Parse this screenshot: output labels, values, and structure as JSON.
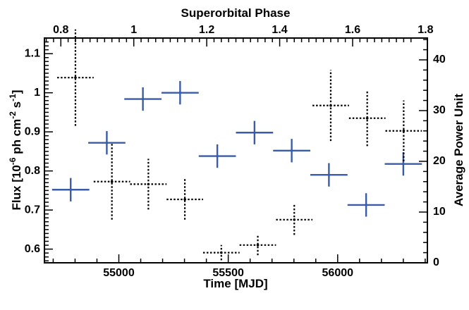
{
  "chart_data": {
    "type": "scatter",
    "title": "",
    "xlabel": "Time [MJD]",
    "ylabel": "Flux [10^-6 ph cm^-2 s^-1]",
    "ylabel_parts": [
      "Flux [10",
      "-6",
      " ph cm",
      "-2",
      " s",
      "-1",
      "]"
    ],
    "x2label": "Superorbital Phase",
    "y2label": "Average Power Unit",
    "xlim": [
      54660,
      56410
    ],
    "ylim": [
      0.565,
      1.14
    ],
    "x2lim": [
      0.755,
      1.805
    ],
    "y2lim": [
      0,
      44.3
    ],
    "xticks": [
      55000,
      55500,
      56000
    ],
    "yticks": [
      0.6,
      0.7,
      0.8,
      0.9,
      1,
      1.1
    ],
    "yticklabels": [
      "0.6",
      "0.7",
      "0.8",
      "0.9",
      "1",
      "1.1"
    ],
    "x2ticks": [
      0.8,
      1.0,
      1.2,
      1.4,
      1.6,
      1.8
    ],
    "x2ticklabels": [
      "0.8",
      "1",
      "1.2",
      "1.4",
      "1.6",
      "1.8"
    ],
    "y2ticks": [
      0,
      10,
      20,
      30,
      40
    ],
    "grid": false,
    "series": [
      {
        "color": "#3a5ca8",
        "style": "solid",
        "axis": "bottom-left",
        "points": [
          {
            "x": 54780,
            "xerr": 85,
            "y": 0.752,
            "yerr": 0.03
          },
          {
            "x": 54945,
            "xerr": 85,
            "y": 0.872,
            "yerr": 0.03
          },
          {
            "x": 55110,
            "xerr": 85,
            "y": 0.984,
            "yerr": 0.03
          },
          {
            "x": 55280,
            "xerr": 85,
            "y": 1.0,
            "yerr": 0.03
          },
          {
            "x": 55450,
            "xerr": 85,
            "y": 0.838,
            "yerr": 0.03
          },
          {
            "x": 55620,
            "xerr": 85,
            "y": 0.898,
            "yerr": 0.03
          },
          {
            "x": 55790,
            "xerr": 85,
            "y": 0.852,
            "yerr": 0.03
          },
          {
            "x": 55960,
            "xerr": 85,
            "y": 0.79,
            "yerr": 0.03
          },
          {
            "x": 56130,
            "xerr": 85,
            "y": 0.713,
            "yerr": 0.03
          },
          {
            "x": 56300,
            "xerr": 85,
            "y": 0.818,
            "yerr": 0.03
          }
        ]
      },
      {
        "color": "#000000",
        "style": "dotted",
        "axis": "top-right",
        "points": [
          {
            "x": 0.84,
            "xerr": 0.05,
            "y": 36.5,
            "yerr": 9.5
          },
          {
            "x": 0.94,
            "xerr": 0.05,
            "y": 16.0,
            "yerr": 7.5
          },
          {
            "x": 1.04,
            "xerr": 0.05,
            "y": 15.5,
            "yerr": 5.0
          },
          {
            "x": 1.14,
            "xerr": 0.05,
            "y": 12.5,
            "yerr": 4.0
          },
          {
            "x": 1.24,
            "xerr": 0.05,
            "y": 2.0,
            "yerr": 1.5
          },
          {
            "x": 1.34,
            "xerr": 0.05,
            "y": 3.5,
            "yerr": 2.0
          },
          {
            "x": 1.44,
            "xerr": 0.05,
            "y": 8.5,
            "yerr": 3.0
          },
          {
            "x": 1.54,
            "xerr": 0.05,
            "y": 31.0,
            "yerr": 7.0
          },
          {
            "x": 1.64,
            "xerr": 0.05,
            "y": 28.5,
            "yerr": 5.5
          },
          {
            "x": 1.74,
            "xerr": 0.05,
            "y": 26.0,
            "yerr": 6.0
          }
        ]
      }
    ]
  }
}
